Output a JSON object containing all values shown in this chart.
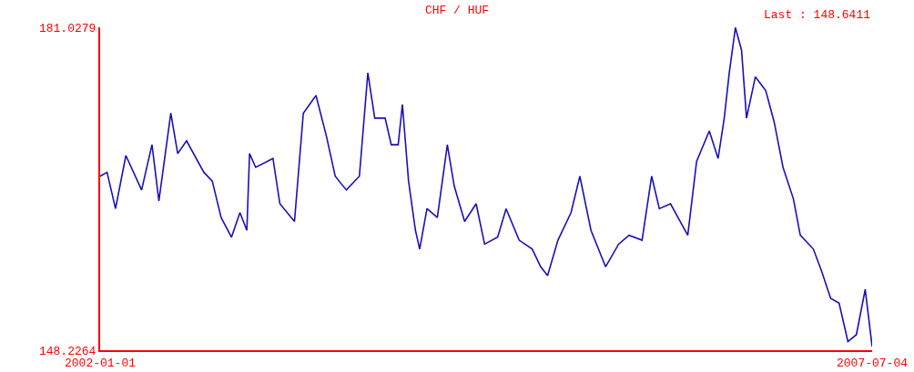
{
  "chart_data": {
    "type": "line",
    "title": "CHF / HUF",
    "annotations": [
      "Last : 148.6411"
    ],
    "x": [
      "2002-01-01",
      "2002-01-19",
      "2002-02-10",
      "2002-03-09",
      "2002-04-19",
      "2002-05-16",
      "2002-06-03",
      "2002-07-04",
      "2002-07-22",
      "2002-08-14",
      "2002-09-28",
      "2002-10-20",
      "2002-11-12",
      "2002-12-09",
      "2002-12-31",
      "2003-01-18",
      "2003-01-25",
      "2003-02-10",
      "2003-03-27",
      "2003-04-14",
      "2003-05-22",
      "2003-06-14",
      "2003-07-17",
      "2003-08-13",
      "2003-09-05",
      "2003-10-04",
      "2003-11-07",
      "2003-11-29",
      "2003-12-17",
      "2004-01-13",
      "2004-01-29",
      "2004-02-16",
      "2004-02-27",
      "2004-03-14",
      "2004-04-01",
      "2004-04-12",
      "2004-05-01",
      "2004-05-28",
      "2004-06-23",
      "2004-07-11",
      "2004-08-07",
      "2004-09-06",
      "2004-09-28",
      "2004-11-01",
      "2004-11-23",
      "2004-12-27",
      "2005-01-30",
      "2005-02-21",
      "2005-03-11",
      "2005-04-07",
      "2005-05-11",
      "2005-06-03",
      "2005-07-02",
      "2005-08-09",
      "2005-09-12",
      "2005-10-09",
      "2005-11-12",
      "2005-12-07",
      "2005-12-27",
      "2006-01-25",
      "2006-03-11",
      "2006-04-03",
      "2006-05-06",
      "2006-05-29",
      "2006-06-14",
      "2006-06-27",
      "2006-07-13",
      "2006-07-29",
      "2006-08-11",
      "2006-09-03",
      "2006-09-30",
      "2006-10-22",
      "2006-11-14",
      "2006-12-11",
      "2006-12-29",
      "2007-02-01",
      "2007-02-23",
      "2007-03-18",
      "2007-04-09",
      "2007-05-02",
      "2007-05-24",
      "2007-06-16",
      "2007-07-04"
    ],
    "series": [
      {
        "color": "#1a10b8",
        "values": [
          165.9,
          166.3,
          162.6,
          168.0,
          164.5,
          169.1,
          163.4,
          172.3,
          168.2,
          169.5,
          166.3,
          165.4,
          161.7,
          159.7,
          162.2,
          160.4,
          168.2,
          166.8,
          167.7,
          163.1,
          161.3,
          172.3,
          174.1,
          170.0,
          165.9,
          164.5,
          165.9,
          176.4,
          171.8,
          171.8,
          169.1,
          169.1,
          173.2,
          165.4,
          160.4,
          158.5,
          162.6,
          161.7,
          169.1,
          164.9,
          161.3,
          163.1,
          159.0,
          159.7,
          162.6,
          159.4,
          158.5,
          156.7,
          155.8,
          159.4,
          162.2,
          165.9,
          160.4,
          156.7,
          159.0,
          159.9,
          159.4,
          165.9,
          162.6,
          163.1,
          159.9,
          167.4,
          170.5,
          167.7,
          171.8,
          176.4,
          181.0,
          178.7,
          171.8,
          176.0,
          174.6,
          171.4,
          166.8,
          163.6,
          159.9,
          158.5,
          156.2,
          153.5,
          153.0,
          149.1,
          149.8,
          154.4,
          148.6
        ]
      }
    ],
    "xlim": [
      "2002-01-01",
      "2007-07-04"
    ],
    "xticks": [
      {
        "value": "2002-01-01",
        "label": "2002-01-01"
      },
      {
        "value": "2007-07-04",
        "label": "2007-07-04"
      }
    ],
    "ylim": [
      148.2264,
      181.0279
    ],
    "yticks": [
      148.2264,
      181.0279
    ],
    "marker": "none",
    "line_style": "solid"
  }
}
